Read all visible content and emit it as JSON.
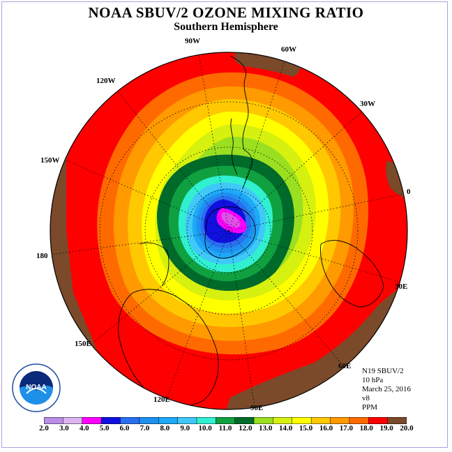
{
  "header": {
    "title": "NOAA SBUV/2 OZONE MIXING RATIO",
    "subtitle": "Southern Hemisphere"
  },
  "map": {
    "projection": "polar-stereographic-south",
    "longitude_labels": [
      {
        "id": "90w",
        "text": "90W"
      },
      {
        "id": "60w",
        "text": "60W"
      },
      {
        "id": "30w",
        "text": "30W"
      },
      {
        "id": "0",
        "text": "0"
      },
      {
        "id": "30e",
        "text": "30E"
      },
      {
        "id": "60e",
        "text": "60E"
      },
      {
        "id": "90e",
        "text": "90E"
      },
      {
        "id": "120e",
        "text": "120E"
      },
      {
        "id": "150e",
        "text": "150E"
      },
      {
        "id": "180",
        "text": "180"
      },
      {
        "id": "150w",
        "text": "150W"
      },
      {
        "id": "120w",
        "text": "120W"
      }
    ]
  },
  "info": {
    "instrument": "N19 SBUV/2",
    "level": "10 hPa",
    "date": "March 25, 2016",
    "version": "v8",
    "units": "PPM"
  },
  "logo": {
    "text": "NOAA"
  },
  "colorbar": {
    "labels": [
      "2.0",
      "3.0",
      "4.0",
      "5.0",
      "6.0",
      "7.0",
      "8.0",
      "9.0",
      "10.0",
      "11.0",
      "12.0",
      "13.0",
      "14.0",
      "15.0",
      "16.0",
      "17.0",
      "18.0",
      "19.0",
      "20.0"
    ],
    "colors": [
      "#b98de8",
      "#dcb4f0",
      "#ff00ff",
      "#1010e0",
      "#2a6ef0",
      "#1e90f0",
      "#1ea8f8",
      "#40c8f8",
      "#30f0d0",
      "#10a040",
      "#006a2a",
      "#9ae020",
      "#d6f010",
      "#ffff00",
      "#ffc800",
      "#ff9a00",
      "#ff6a00",
      "#ff0000",
      "#7a4a2a"
    ]
  }
}
